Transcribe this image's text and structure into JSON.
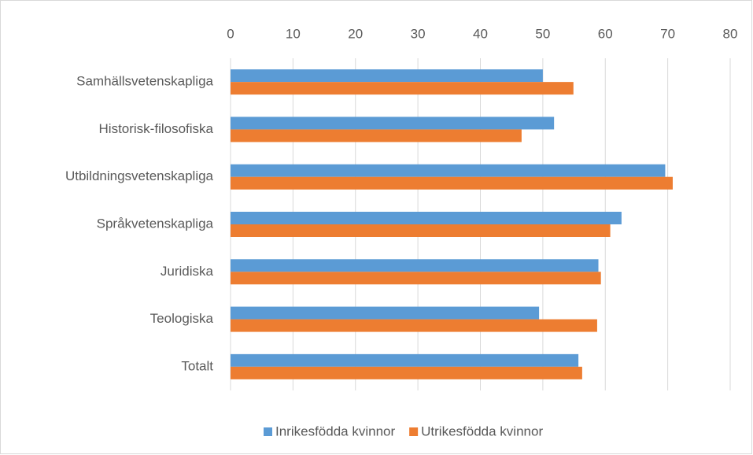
{
  "chart_data": {
    "type": "barh",
    "categories": [
      "Samhällsvetenskapliga",
      "Historisk-filosofiska",
      "Utbildningsvetenskapliga",
      "Språkvetenskapliga",
      "Juridiska",
      "Teologiska",
      "Totalt"
    ],
    "series": [
      {
        "name": "Inrikesfödda kvinnor",
        "color": "#5b9bd5",
        "values": [
          50.0,
          51.8,
          69.6,
          62.6,
          58.9,
          49.4,
          55.7
        ]
      },
      {
        "name": "Utrikesfödda kvinnor",
        "color": "#ed7d31",
        "values": [
          54.9,
          46.6,
          70.8,
          60.8,
          59.3,
          58.7,
          56.3
        ]
      }
    ],
    "xlim": [
      0,
      80
    ],
    "xticks": [
      0,
      10,
      20,
      30,
      40,
      50,
      60,
      70,
      80
    ],
    "grid": true,
    "legend": "bottom"
  }
}
